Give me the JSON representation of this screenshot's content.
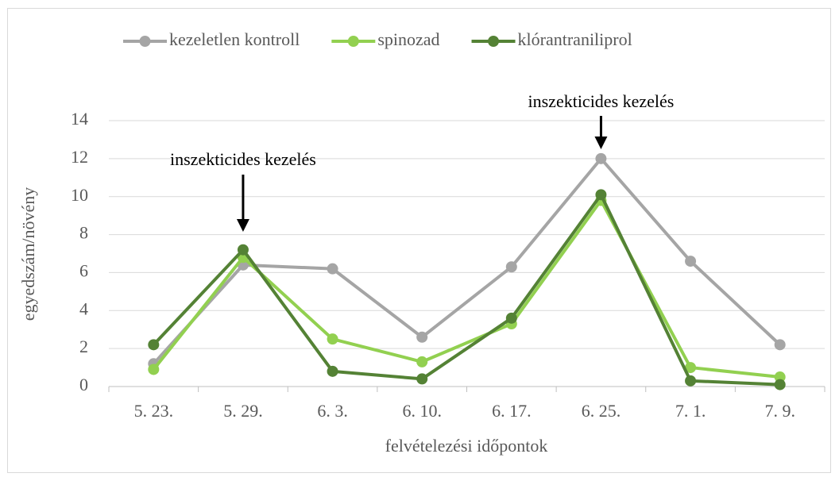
{
  "chart_data": {
    "type": "line",
    "y_label": "egyedszám/növény",
    "x_label": "felvételezési időpontok",
    "categories": [
      "5. 23.",
      "5. 29.",
      "6. 3.",
      "6. 10.",
      "6. 17.",
      "6. 25.",
      "7. 1.",
      "7. 9."
    ],
    "series": [
      {
        "name": "kezeletlen kontroll",
        "color": "#a5a5a5",
        "values": [
          1.2,
          6.4,
          6.2,
          2.6,
          6.3,
          12.0,
          6.6,
          2.2
        ]
      },
      {
        "name": "spinozad",
        "color": "#92d050",
        "values": [
          0.9,
          6.8,
          2.5,
          1.3,
          3.3,
          9.8,
          1.0,
          0.5
        ]
      },
      {
        "name": "klórantraniliprol",
        "color": "#548235",
        "values": [
          2.2,
          7.2,
          0.8,
          0.4,
          3.6,
          10.1,
          0.3,
          0.1
        ]
      }
    ],
    "annotations": [
      {
        "text": "inszekticides kezelés",
        "x": "5. 29."
      },
      {
        "text": "inszekticides kezelés",
        "x": "6. 25."
      }
    ],
    "ylim": [
      0,
      14
    ],
    "yticks": [
      0,
      2,
      4,
      6,
      8,
      10,
      12,
      14
    ],
    "grid": true,
    "legend": "top"
  }
}
